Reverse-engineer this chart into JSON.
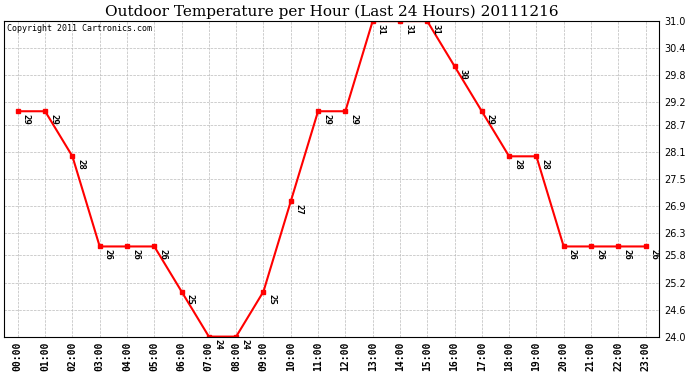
{
  "title": "Outdoor Temperature per Hour (Last 24 Hours) 20111216",
  "copyright_text": "Copyright 2011 Cartronics.com",
  "hours": [
    "00:00",
    "01:00",
    "02:00",
    "03:00",
    "04:00",
    "05:00",
    "06:00",
    "07:00",
    "08:00",
    "09:00",
    "10:00",
    "11:00",
    "12:00",
    "13:00",
    "14:00",
    "15:00",
    "16:00",
    "17:00",
    "18:00",
    "19:00",
    "20:00",
    "21:00",
    "22:00",
    "23:00"
  ],
  "values": [
    29,
    29,
    28,
    26,
    26,
    26,
    25,
    24,
    24,
    25,
    27,
    29,
    29,
    31,
    31,
    31,
    30,
    29,
    28,
    28,
    26,
    26,
    26,
    26
  ],
  "ylim": [
    24.0,
    31.0
  ],
  "yticks": [
    24.0,
    24.6,
    25.2,
    25.8,
    26.3,
    26.9,
    27.5,
    28.1,
    28.7,
    29.2,
    29.8,
    30.4,
    31.0
  ],
  "line_color": "red",
  "marker_color": "red",
  "bg_color": "white",
  "plot_bg_color": "white",
  "grid_color": "#bbbbbb",
  "title_fontsize": 11,
  "label_fontsize": 7,
  "annotation_fontsize": 6.5
}
